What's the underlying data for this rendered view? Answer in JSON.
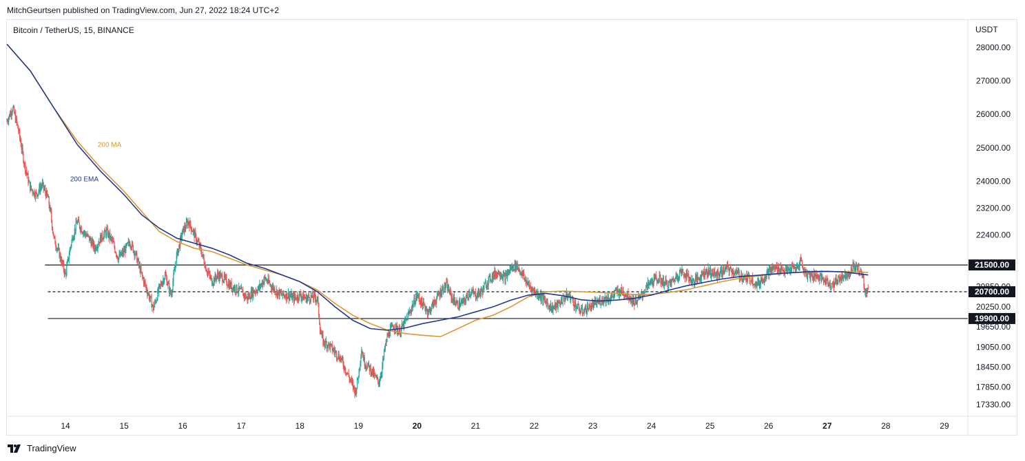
{
  "header": {
    "published": "MitchGeurtsen published on TradingView.com, Jun 27, 2022 18:24 UTC+2"
  },
  "symbol": "Bitcoin / TetherUS, 15, BINANCE",
  "footer": {
    "brand": "TradingView"
  },
  "chart_data": {
    "type": "candlestick",
    "title": "Bitcoin / TetherUS, 15, BINANCE",
    "ylabel": "USDT",
    "ylim": [
      17000,
      28800
    ],
    "xlim": [
      13.0,
      29.4
    ],
    "y_ticks": [
      "28000.00",
      "27000.00",
      "26000.00",
      "25000.00",
      "24000.00",
      "23200.00",
      "22400.00",
      "20850.00",
      "20250.00",
      "19650.00",
      "19050.00",
      "18450.00",
      "17850.00",
      "17330.00"
    ],
    "x_ticks": [
      {
        "label": "14",
        "day": 14,
        "bold": false
      },
      {
        "label": "15",
        "day": 15,
        "bold": false
      },
      {
        "label": "16",
        "day": 16,
        "bold": false
      },
      {
        "label": "17",
        "day": 17,
        "bold": false
      },
      {
        "label": "18",
        "day": 18,
        "bold": false
      },
      {
        "label": "19",
        "day": 19,
        "bold": false
      },
      {
        "label": "20",
        "day": 20,
        "bold": true
      },
      {
        "label": "21",
        "day": 21,
        "bold": false
      },
      {
        "label": "22",
        "day": 22,
        "bold": false
      },
      {
        "label": "23",
        "day": 23,
        "bold": false
      },
      {
        "label": "24",
        "day": 24,
        "bold": false
      },
      {
        "label": "25",
        "day": 25,
        "bold": false
      },
      {
        "label": "26",
        "day": 26,
        "bold": false
      },
      {
        "label": "27",
        "day": 27,
        "bold": true
      },
      {
        "label": "28",
        "day": 28,
        "bold": false
      },
      {
        "label": "29",
        "day": 29,
        "bold": false
      }
    ],
    "levels": [
      {
        "value": 21500,
        "label": "21500.00",
        "style": "solid",
        "from_day": 13.65
      },
      {
        "value": 20700,
        "label": "20700.00",
        "style": "dashed",
        "from_day": 13.7
      },
      {
        "value": 19900,
        "label": "19900.00",
        "style": "solid",
        "from_day": 13.7
      }
    ],
    "price_path": [
      [
        13.0,
        25800
      ],
      [
        13.1,
        26200
      ],
      [
        13.2,
        25500
      ],
      [
        13.3,
        24500
      ],
      [
        13.4,
        23800
      ],
      [
        13.5,
        23600
      ],
      [
        13.6,
        23900
      ],
      [
        13.7,
        23500
      ],
      [
        13.75,
        23000
      ],
      [
        13.8,
        22300
      ],
      [
        13.9,
        21800
      ],
      [
        14.0,
        21200
      ],
      [
        14.1,
        22200
      ],
      [
        14.2,
        22800
      ],
      [
        14.3,
        22500
      ],
      [
        14.4,
        22300
      ],
      [
        14.5,
        22000
      ],
      [
        14.6,
        22300
      ],
      [
        14.7,
        22500
      ],
      [
        14.8,
        22200
      ],
      [
        14.9,
        21700
      ],
      [
        15.0,
        21900
      ],
      [
        15.1,
        22200
      ],
      [
        15.2,
        21800
      ],
      [
        15.3,
        21200
      ],
      [
        15.4,
        20700
      ],
      [
        15.5,
        20200
      ],
      [
        15.6,
        20800
      ],
      [
        15.7,
        21200
      ],
      [
        15.8,
        20600
      ],
      [
        15.9,
        21800
      ],
      [
        16.0,
        22500
      ],
      [
        16.1,
        22800
      ],
      [
        16.2,
        22400
      ],
      [
        16.3,
        22000
      ],
      [
        16.4,
        21400
      ],
      [
        16.5,
        21000
      ],
      [
        16.6,
        21200
      ],
      [
        16.7,
        21100
      ],
      [
        16.8,
        20900
      ],
      [
        16.9,
        20800
      ],
      [
        17.0,
        20700
      ],
      [
        17.1,
        20500
      ],
      [
        17.2,
        20700
      ],
      [
        17.3,
        20800
      ],
      [
        17.4,
        21100
      ],
      [
        17.5,
        20900
      ],
      [
        17.6,
        20700
      ],
      [
        17.7,
        20600
      ],
      [
        17.8,
        20600
      ],
      [
        17.9,
        20500
      ],
      [
        18.0,
        20600
      ],
      [
        18.1,
        20500
      ],
      [
        18.2,
        20550
      ],
      [
        18.3,
        20500
      ],
      [
        18.35,
        19500
      ],
      [
        18.4,
        19200
      ],
      [
        18.5,
        19100
      ],
      [
        18.6,
        18900
      ],
      [
        18.7,
        18700
      ],
      [
        18.8,
        18300
      ],
      [
        18.9,
        17900
      ],
      [
        18.95,
        17700
      ],
      [
        19.0,
        18200
      ],
      [
        19.05,
        19000
      ],
      [
        19.1,
        18600
      ],
      [
        19.2,
        18400
      ],
      [
        19.3,
        18100
      ],
      [
        19.35,
        18000
      ],
      [
        19.4,
        18400
      ],
      [
        19.45,
        19000
      ],
      [
        19.5,
        19400
      ],
      [
        19.6,
        19700
      ],
      [
        19.7,
        19500
      ],
      [
        19.8,
        19800
      ],
      [
        19.9,
        20200
      ],
      [
        20.0,
        20600
      ],
      [
        20.1,
        20300
      ],
      [
        20.2,
        20100
      ],
      [
        20.3,
        20400
      ],
      [
        20.4,
        20700
      ],
      [
        20.5,
        20900
      ],
      [
        20.6,
        20500
      ],
      [
        20.7,
        20300
      ],
      [
        20.8,
        20400
      ],
      [
        20.9,
        20700
      ],
      [
        21.0,
        20600
      ],
      [
        21.1,
        20700
      ],
      [
        21.2,
        21000
      ],
      [
        21.3,
        21200
      ],
      [
        21.4,
        21300
      ],
      [
        21.5,
        21100
      ],
      [
        21.6,
        21400
      ],
      [
        21.7,
        21500
      ],
      [
        21.8,
        21200
      ],
      [
        21.9,
        20900
      ],
      [
        22.0,
        20700
      ],
      [
        22.1,
        20600
      ],
      [
        22.2,
        20400
      ],
      [
        22.3,
        20200
      ],
      [
        22.4,
        20300
      ],
      [
        22.5,
        20500
      ],
      [
        22.6,
        20600
      ],
      [
        22.7,
        20300
      ],
      [
        22.8,
        20100
      ],
      [
        22.9,
        20200
      ],
      [
        23.0,
        20300
      ],
      [
        23.1,
        20400
      ],
      [
        23.2,
        20500
      ],
      [
        23.3,
        20500
      ],
      [
        23.4,
        20700
      ],
      [
        23.5,
        20700
      ],
      [
        23.6,
        20600
      ],
      [
        23.7,
        20400
      ],
      [
        23.8,
        20500
      ],
      [
        23.9,
        20800
      ],
      [
        24.0,
        21000
      ],
      [
        24.1,
        21100
      ],
      [
        24.2,
        21000
      ],
      [
        24.3,
        20900
      ],
      [
        24.4,
        21100
      ],
      [
        24.5,
        21300
      ],
      [
        24.6,
        21200
      ],
      [
        24.7,
        21000
      ],
      [
        24.8,
        21100
      ],
      [
        24.9,
        21300
      ],
      [
        25.0,
        21300
      ],
      [
        25.1,
        21200
      ],
      [
        25.2,
        21300
      ],
      [
        25.3,
        21400
      ],
      [
        25.4,
        21300
      ],
      [
        25.5,
        21200
      ],
      [
        25.6,
        21100
      ],
      [
        25.7,
        21100
      ],
      [
        25.8,
        20900
      ],
      [
        25.9,
        21100
      ],
      [
        26.0,
        21300
      ],
      [
        26.1,
        21400
      ],
      [
        26.2,
        21400
      ],
      [
        26.3,
        21300
      ],
      [
        26.4,
        21400
      ],
      [
        26.5,
        21400
      ],
      [
        26.55,
        21700
      ],
      [
        26.6,
        21300
      ],
      [
        26.7,
        21200
      ],
      [
        26.8,
        21200
      ],
      [
        26.9,
        21100
      ],
      [
        27.0,
        21000
      ],
      [
        27.1,
        20900
      ],
      [
        27.2,
        21100
      ],
      [
        27.3,
        21200
      ],
      [
        27.4,
        21300
      ],
      [
        27.45,
        21500
      ],
      [
        27.5,
        21400
      ],
      [
        27.55,
        21350
      ],
      [
        27.6,
        21200
      ],
      [
        27.65,
        20700
      ],
      [
        27.7,
        20800
      ]
    ],
    "series": [
      {
        "name": "200 MA",
        "color": "#e0962f",
        "label_day": 14.55,
        "label_value": 25030,
        "points": [
          [
            13.0,
            28100
          ],
          [
            13.4,
            27300
          ],
          [
            13.8,
            26200
          ],
          [
            14.2,
            25200
          ],
          [
            14.6,
            24400
          ],
          [
            15.0,
            23700
          ],
          [
            15.3,
            23100
          ],
          [
            15.6,
            22500
          ],
          [
            15.9,
            22200
          ],
          [
            16.2,
            22000
          ],
          [
            16.5,
            21900
          ],
          [
            16.8,
            21700
          ],
          [
            17.1,
            21500
          ],
          [
            17.4,
            21350
          ],
          [
            17.7,
            21200
          ],
          [
            18.0,
            21000
          ],
          [
            18.3,
            20750
          ],
          [
            18.6,
            20350
          ],
          [
            18.9,
            20000
          ],
          [
            19.2,
            19750
          ],
          [
            19.5,
            19550
          ],
          [
            19.8,
            19450
          ],
          [
            20.1,
            19400
          ],
          [
            20.4,
            19360
          ],
          [
            20.7,
            19600
          ],
          [
            21.0,
            19850
          ],
          [
            21.3,
            20000
          ],
          [
            21.6,
            20250
          ],
          [
            21.9,
            20550
          ],
          [
            22.2,
            20700
          ],
          [
            22.5,
            20720
          ],
          [
            22.8,
            20700
          ],
          [
            23.1,
            20680
          ],
          [
            23.4,
            20650
          ],
          [
            23.7,
            20620
          ],
          [
            24.0,
            20620
          ],
          [
            24.3,
            20680
          ],
          [
            24.6,
            20760
          ],
          [
            24.9,
            20880
          ],
          [
            25.2,
            21000
          ],
          [
            25.5,
            21100
          ],
          [
            25.8,
            21170
          ],
          [
            26.1,
            21230
          ],
          [
            26.4,
            21270
          ],
          [
            26.7,
            21290
          ],
          [
            27.0,
            21300
          ],
          [
            27.3,
            21300
          ],
          [
            27.7,
            21280
          ]
        ]
      },
      {
        "name": "200 EMA",
        "color": "#1f3a93",
        "label_day": 14.08,
        "label_value": 24000,
        "points": [
          [
            13.0,
            28100
          ],
          [
            13.4,
            27300
          ],
          [
            13.8,
            26200
          ],
          [
            14.2,
            25100
          ],
          [
            14.6,
            24300
          ],
          [
            15.0,
            23600
          ],
          [
            15.3,
            23000
          ],
          [
            15.6,
            22600
          ],
          [
            15.9,
            22300
          ],
          [
            16.2,
            22150
          ],
          [
            16.5,
            22000
          ],
          [
            16.8,
            21800
          ],
          [
            17.1,
            21550
          ],
          [
            17.4,
            21400
          ],
          [
            17.7,
            21200
          ],
          [
            18.0,
            21000
          ],
          [
            18.3,
            20700
          ],
          [
            18.6,
            20250
          ],
          [
            18.9,
            19850
          ],
          [
            19.2,
            19600
          ],
          [
            19.5,
            19550
          ],
          [
            19.8,
            19620
          ],
          [
            20.1,
            19750
          ],
          [
            20.4,
            19850
          ],
          [
            20.7,
            19950
          ],
          [
            21.0,
            20100
          ],
          [
            21.3,
            20250
          ],
          [
            21.6,
            20450
          ],
          [
            21.9,
            20600
          ],
          [
            22.2,
            20650
          ],
          [
            22.5,
            20580
          ],
          [
            22.8,
            20460
          ],
          [
            23.1,
            20420
          ],
          [
            23.4,
            20450
          ],
          [
            23.7,
            20500
          ],
          [
            24.0,
            20600
          ],
          [
            24.3,
            20750
          ],
          [
            24.6,
            20880
          ],
          [
            24.9,
            20980
          ],
          [
            25.2,
            21080
          ],
          [
            25.5,
            21150
          ],
          [
            25.8,
            21190
          ],
          [
            26.1,
            21230
          ],
          [
            26.4,
            21270
          ],
          [
            26.7,
            21300
          ],
          [
            27.0,
            21310
          ],
          [
            27.3,
            21290
          ],
          [
            27.7,
            21200
          ]
        ]
      }
    ]
  }
}
